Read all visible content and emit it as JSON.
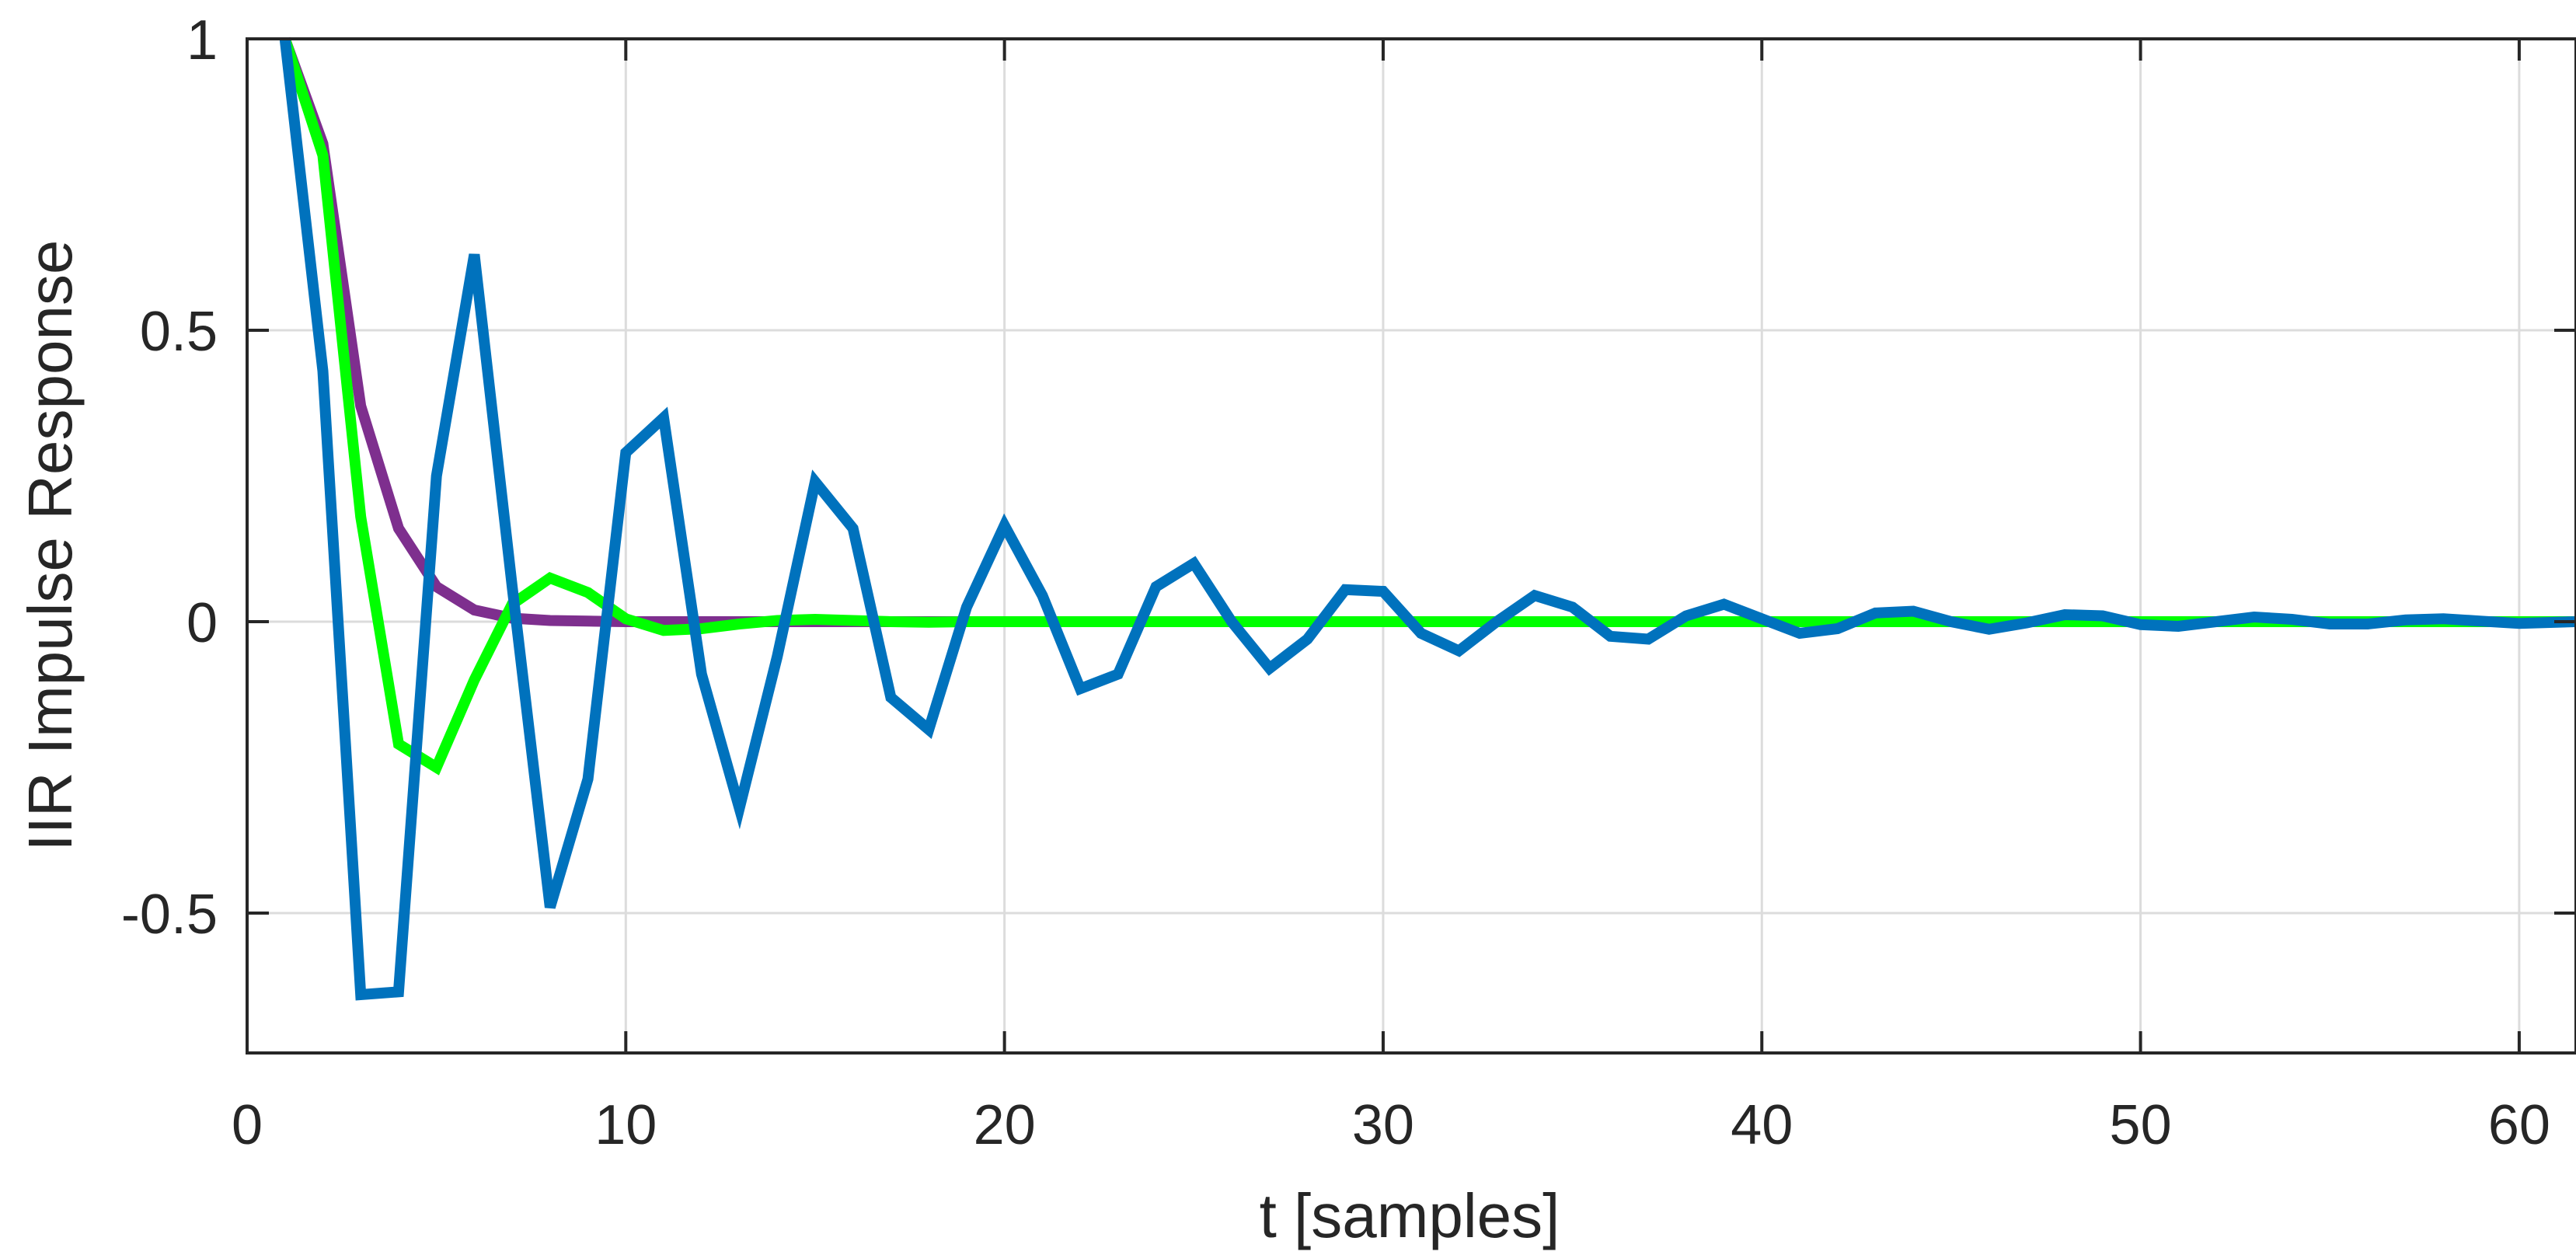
{
  "chart_data": {
    "type": "line",
    "xlabel": "t [samples]",
    "ylabel": "IIR Impulse Response",
    "xlim": [
      0,
      61.5
    ],
    "ylim": [
      -0.74,
      1.0
    ],
    "xticks": [
      0,
      10,
      20,
      30,
      40,
      50,
      60
    ],
    "xtick_labels": [
      "0",
      "10",
      "20",
      "30",
      "40",
      "50",
      "60"
    ],
    "yticks": [
      -0.5,
      0,
      0.5,
      1
    ],
    "ytick_labels": [
      "-0.5",
      "0",
      "0.5",
      "1"
    ],
    "grid": true,
    "series": [
      {
        "color": "#7e2f8e",
        "x": [
          1,
          2,
          3,
          4,
          5,
          6,
          7,
          8,
          9,
          10,
          11,
          12,
          13,
          14,
          15,
          16,
          17,
          18,
          19,
          20,
          25,
          30,
          35,
          40,
          45,
          50,
          55,
          60,
          61.5
        ],
        "values": [
          1.0,
          0.82,
          0.37,
          0.16,
          0.06,
          0.02,
          0.006,
          0.002,
          0.001,
          0,
          0,
          0,
          0,
          0,
          0,
          0,
          0,
          0,
          0,
          0,
          0,
          0,
          0,
          0,
          0,
          0,
          0,
          0,
          0
        ]
      },
      {
        "color": "#00ff00",
        "x": [
          1,
          2,
          3,
          4,
          5,
          6,
          7,
          8,
          9,
          10,
          11,
          12,
          13,
          14,
          15,
          16,
          17,
          18,
          19,
          20,
          22,
          24,
          26,
          28,
          30,
          35,
          40,
          45,
          50,
          55,
          60,
          61.5
        ],
        "values": [
          1.0,
          0.8,
          0.18,
          -0.21,
          -0.25,
          -0.1,
          0.03,
          0.075,
          0.05,
          0.005,
          -0.015,
          -0.012,
          -0.004,
          0.002,
          0.004,
          0.002,
          0.0,
          -0.001,
          0,
          0,
          0,
          0,
          0,
          0,
          0,
          0,
          0,
          0,
          0,
          0,
          0,
          0
        ]
      },
      {
        "color": "#0072bd",
        "x": [
          1,
          2,
          3,
          4,
          5,
          6,
          7,
          8,
          9,
          10,
          11,
          12,
          13,
          14,
          15,
          16,
          17,
          18,
          19,
          20,
          21,
          22,
          23,
          24,
          25,
          26,
          27,
          28,
          29,
          30,
          31,
          32,
          33,
          34,
          35,
          36,
          37,
          38,
          39,
          40,
          41,
          42,
          43,
          44,
          45,
          46,
          47,
          48,
          49,
          50,
          51,
          52,
          53,
          54,
          55,
          56,
          57,
          58,
          59,
          60,
          61,
          61.5
        ],
        "values": [
          1.0,
          0.43,
          -0.64,
          -0.635,
          0.25,
          0.63,
          0.06,
          -0.49,
          -0.27,
          0.29,
          0.35,
          -0.09,
          -0.32,
          -0.06,
          0.24,
          0.16,
          -0.13,
          -0.185,
          0.025,
          0.165,
          0.045,
          -0.115,
          -0.09,
          0.06,
          0.1,
          0.0,
          -0.08,
          -0.03,
          0.055,
          0.052,
          -0.02,
          -0.05,
          0.0,
          0.045,
          0.025,
          -0.025,
          -0.03,
          0.01,
          0.03,
          0.005,
          -0.02,
          -0.012,
          0.015,
          0.018,
          0.0,
          -0.013,
          -0.002,
          0.012,
          0.01,
          -0.005,
          -0.008,
          0.0,
          0.008,
          0.004,
          -0.004,
          -0.004,
          0.003,
          0.005,
          0.001,
          -0.003,
          -0.001,
          0.0
        ]
      }
    ]
  }
}
